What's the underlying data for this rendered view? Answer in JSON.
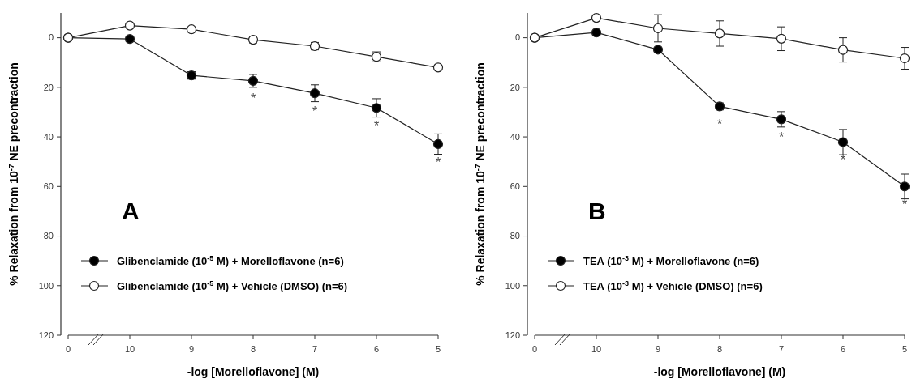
{
  "chart_data": [
    {
      "type": "line",
      "xlabel": "-log [Morelloflavone] (M)",
      "ylabel": "% Relaxation from 10$^{-7}$ NE precontraction",
      "categories": [
        "0",
        "10",
        "9",
        "8",
        "7",
        "6",
        "5"
      ],
      "ylim": [
        120,
        -10
      ],
      "yticks": [
        0,
        20,
        40,
        60,
        80,
        100,
        120
      ],
      "marker": "circle",
      "legend": "bottom left",
      "grid": false,
      "series": [
        {
          "name": "Glibenclamide (10$^{-5}$ M) + Morelloflavone (n=6)",
          "color": "#000000",
          "values": [
            0,
            0.5,
            15.2,
            17.4,
            22.4,
            28.3,
            42.9
          ],
          "errors": [
            null,
            null,
            1.5,
            2.6,
            3.4,
            3.7,
            4.1
          ]
        },
        {
          "name": "Glibenclamide (10$^{-5}$ M) + Vehicle (DMSO) (n=6)",
          "color": "#ffffff",
          "values": [
            0,
            -4.9,
            -3.4,
            0.8,
            3.4,
            7.7,
            12
          ],
          "errors": [
            null,
            null,
            null,
            1.3,
            1.5,
            2,
            null
          ]
        }
      ],
      "annotations": [
        "A",
        {
          "text": "*",
          "x": "8",
          "y": 17.4
        },
        {
          "text": "*",
          "x": "7",
          "y": 22.4
        },
        {
          "text": "*",
          "x": "6",
          "y": 28.3
        },
        {
          "text": "*",
          "x": "5",
          "y": 42.9
        }
      ]
    },
    {
      "type": "line",
      "xlabel": "-log [Morelloflavone] (M)",
      "ylabel": "% Relaxation from 10$^{-7}$ NE precontraction",
      "categories": [
        "0",
        "10",
        "9",
        "8",
        "7",
        "6",
        "5"
      ],
      "ylim": [
        120,
        -10
      ],
      "yticks": [
        0,
        20,
        40,
        60,
        80,
        100,
        120
      ],
      "marker": "circle",
      "legend": "bottom left",
      "grid": false,
      "series": [
        {
          "name": "TEA (10$^{-3}$ M) + Morelloflavone (n=6)",
          "color": "#000000",
          "values": [
            0,
            -2.1,
            4.8,
            27.7,
            32.9,
            42.1,
            60
          ],
          "errors": [
            null,
            null,
            null,
            1.4,
            3.1,
            5.1,
            5
          ]
        },
        {
          "name": "TEA (10$^{-3}$ M) + Vehicle (DMSO) (n=6)",
          "color": "#ffffff",
          "values": [
            0,
            -8,
            -3.8,
            -1.7,
            0.4,
            4.9,
            8.3
          ],
          "errors": [
            null,
            null,
            5.5,
            5.1,
            4.8,
            4.9,
            4.4
          ]
        }
      ],
      "annotations": [
        "B",
        {
          "text": "*",
          "x": "8",
          "y": 27.7
        },
        {
          "text": "*",
          "x": "7",
          "y": 32.9
        },
        {
          "text": "*",
          "x": "6",
          "y": 42.1
        },
        {
          "text": "*",
          "x": "5",
          "y": 60
        }
      ]
    }
  ]
}
